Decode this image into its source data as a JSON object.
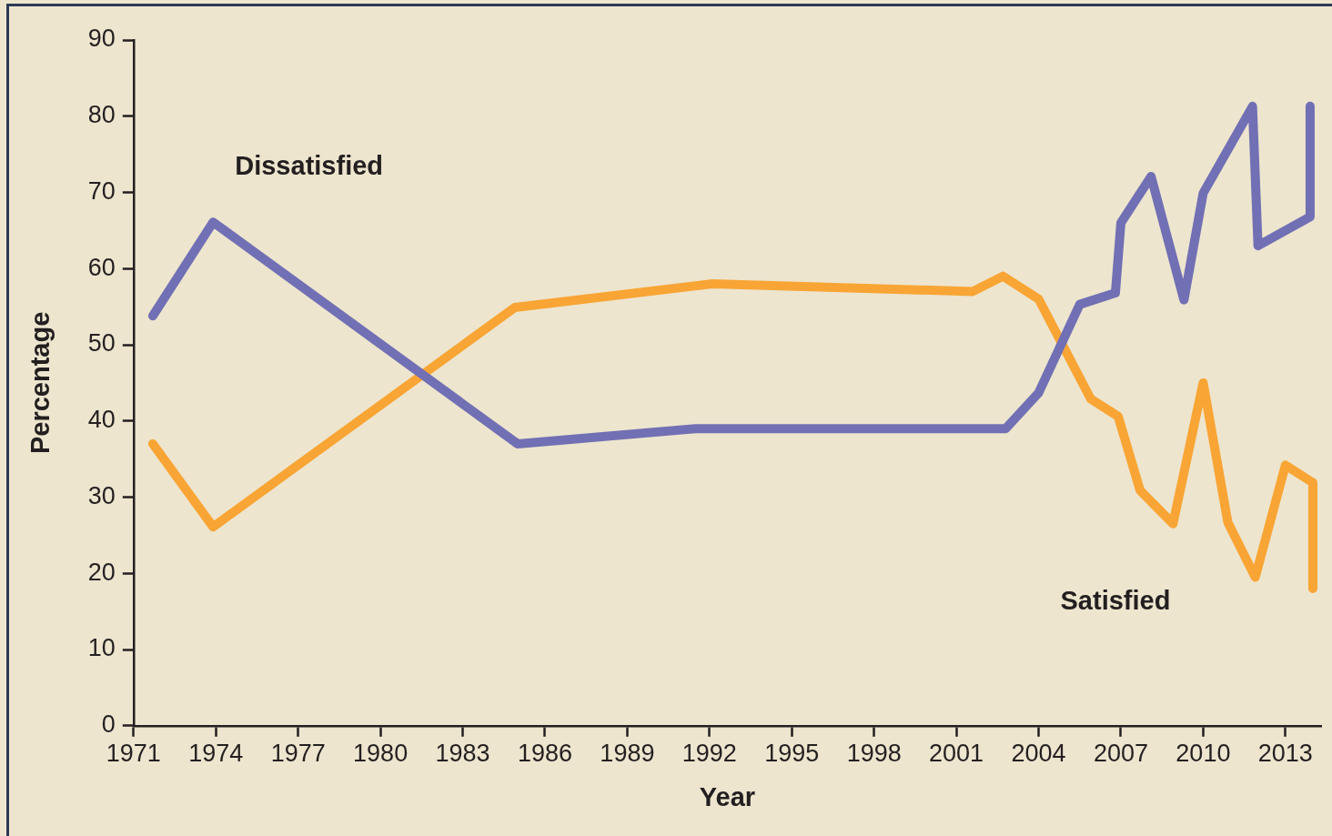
{
  "chart_data": {
    "type": "line",
    "xlabel": "Year",
    "ylabel": "Percentage",
    "xlim": [
      1971,
      2014.3
    ],
    "ylim": [
      0,
      90
    ],
    "xticks": [
      1971,
      1974,
      1977,
      1980,
      1983,
      1986,
      1989,
      1992,
      1995,
      1998,
      2001,
      2004,
      2007,
      2010,
      2013
    ],
    "yticks": [
      0,
      10,
      20,
      30,
      40,
      50,
      60,
      70,
      80,
      90
    ],
    "grid": false,
    "legend": false,
    "marker": "none",
    "line_style": "solid",
    "series": [
      {
        "name": "Dissatisfied",
        "color": "#7170b4",
        "x": [
          1971.7,
          1973.9,
          1985.0,
          1991.5,
          2002.8,
          2004.0,
          2005.5,
          2006.8,
          2007.0,
          2008.1,
          2009.3,
          2010.0,
          2011.8,
          2012.0,
          2013.9,
          2013.9
        ],
        "values": [
          53.8,
          66.1,
          37.0,
          39.0,
          39.0,
          43.7,
          55.3,
          56.8,
          66.0,
          72.1,
          55.9,
          69.9,
          81.3,
          63.0,
          66.8,
          81.3
        ]
      },
      {
        "name": "Satisfied",
        "color": "#f9a535",
        "x": [
          1971.7,
          1973.9,
          1984.9,
          1992.1,
          2001.6,
          2002.7,
          2004.0,
          2005.9,
          2006.9,
          2007.7,
          2008.9,
          2010.0,
          2010.9,
          2011.9,
          2013.0,
          2014.0,
          2014.0
        ],
        "values": [
          37.0,
          26.1,
          54.9,
          58.0,
          57.0,
          59.0,
          56.0,
          42.9,
          40.6,
          30.9,
          26.5,
          45.0,
          26.7,
          19.5,
          34.2,
          31.9,
          18.0
        ]
      }
    ]
  }
}
